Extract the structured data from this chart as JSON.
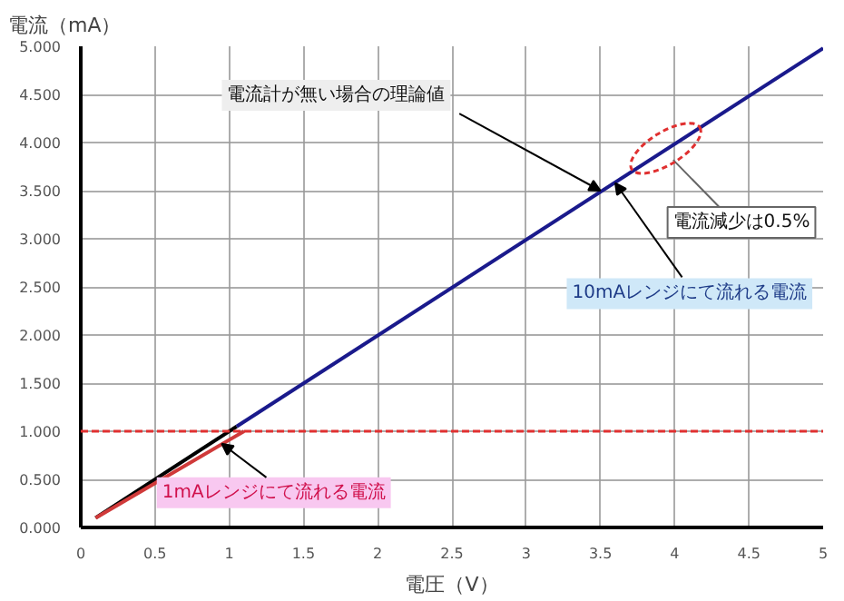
{
  "chart_data": {
    "type": "line",
    "xlabel": "電圧（V）",
    "ylabel": "電流（mA）",
    "series": [
      {
        "color": "#000000",
        "x": [
          0.1,
          1.05
        ],
        "values": [
          0.1,
          1.05
        ]
      },
      {
        "color": "#1a1a8c",
        "x": [
          1.05,
          5
        ],
        "values": [
          1.05,
          4.98
        ]
      },
      {
        "color": "#d03a3a",
        "x": [
          0.1,
          1.1
        ],
        "values": [
          0.1,
          1.0
        ]
      }
    ],
    "xlim": [
      0,
      5
    ],
    "xticks": [
      0,
      0.5,
      1,
      1.5,
      2,
      2.5,
      3,
      3.5,
      4,
      4.5,
      5
    ],
    "ylim": [
      0,
      5
    ],
    "yticks": [
      {
        "value": 0,
        "label": "0.000"
      },
      {
        "value": 0.5,
        "label": "0.500"
      },
      {
        "value": 1,
        "label": "1.000"
      },
      {
        "value": 1.5,
        "label": "1.500"
      },
      {
        "value": 2,
        "label": "2.000"
      },
      {
        "value": 2.5,
        "label": "2.500"
      },
      {
        "value": 3,
        "label": "3.000"
      },
      {
        "value": 3.5,
        "label": "3.500"
      },
      {
        "value": 4,
        "label": "4.000"
      },
      {
        "value": 4.5,
        "label": "4.500"
      },
      {
        "value": 5,
        "label": "5.000"
      }
    ],
    "ref_lines": [
      {
        "axis": "y",
        "value": 1,
        "color": "#e03030",
        "line_style": "dashed"
      }
    ],
    "annotations": [
      {
        "text": "電流計が無い場合の理論値",
        "x": 3.5,
        "y": 3.5
      },
      {
        "text": "10mAレンジにて流れる電流",
        "x": 3.6,
        "y": 3.58
      },
      {
        "text": "1mAレンジにて流れる電流",
        "x": 0.95,
        "y": 0.87
      },
      {
        "text": "電流減少は0.5%",
        "x": 3.94,
        "y": 3.94
      }
    ],
    "grid": true,
    "marker": "none",
    "line_style": "solid"
  }
}
